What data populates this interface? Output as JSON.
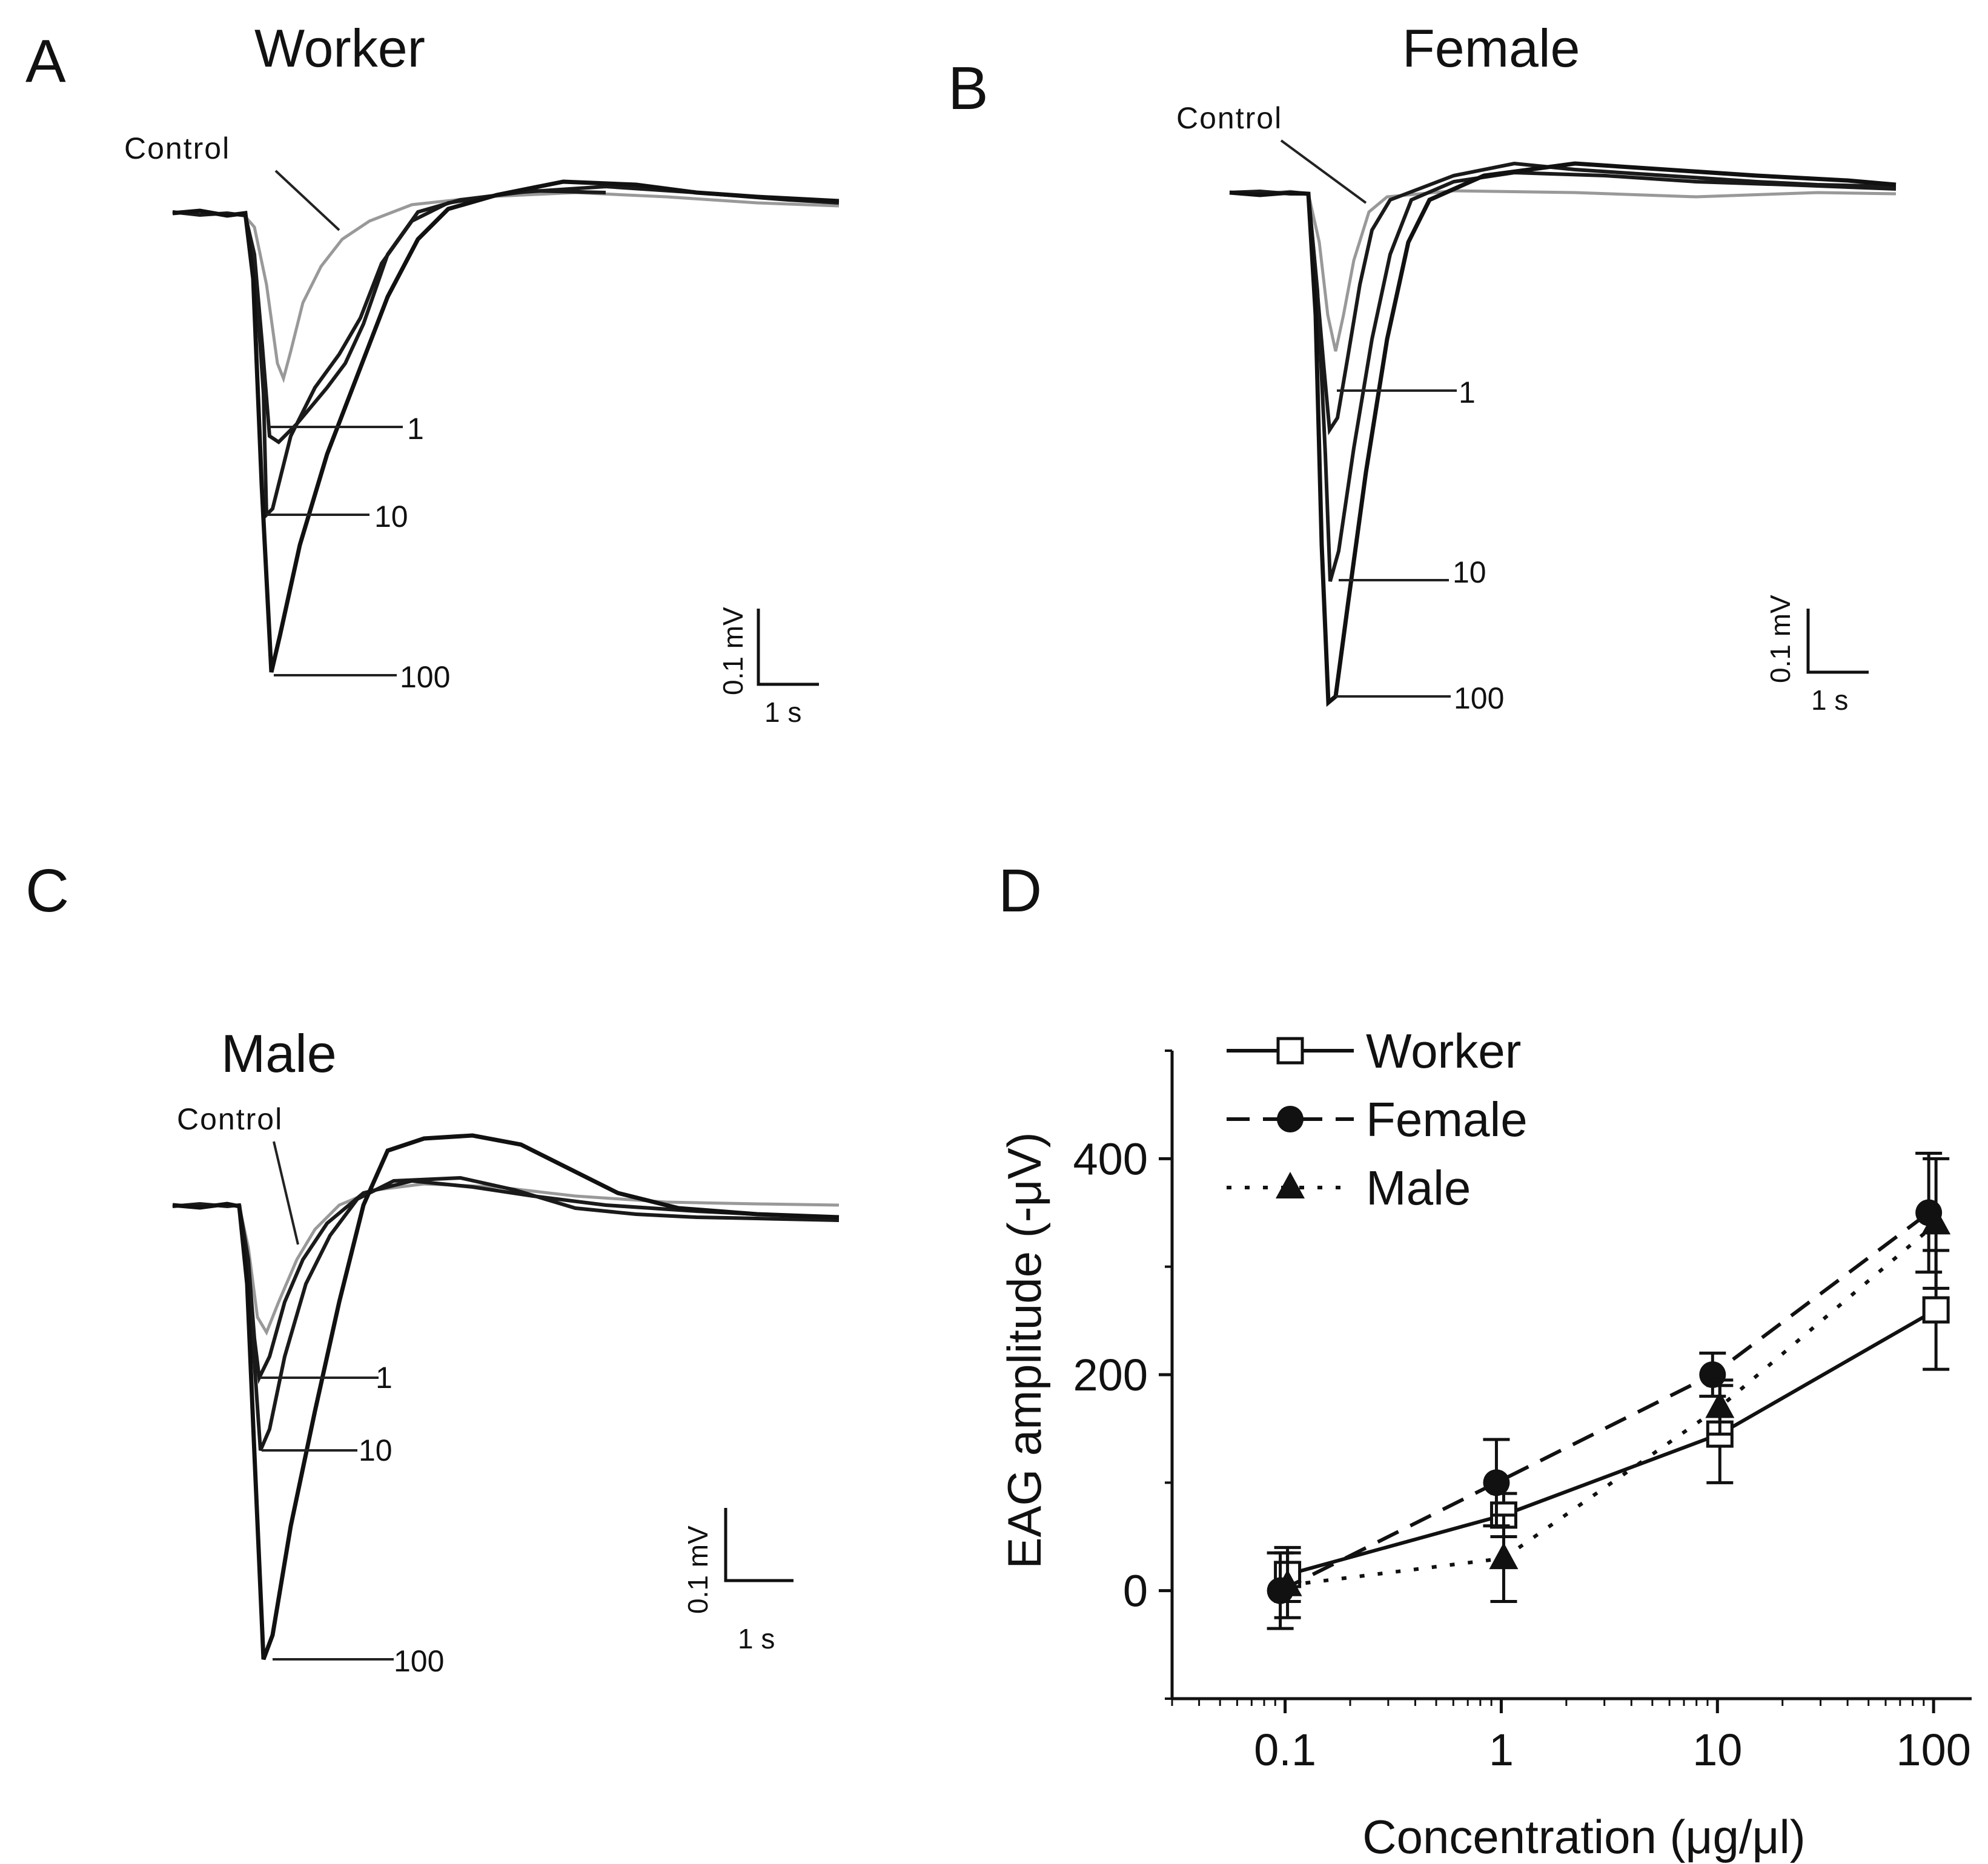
{
  "panels": {
    "A": {
      "label": "A",
      "title": "Worker",
      "control_label": "Control",
      "dose_labels": [
        "1",
        "10",
        "100"
      ],
      "scale_voltage": "0.1 mV",
      "scale_time": "1 s"
    },
    "B": {
      "label": "B",
      "title": "Female",
      "control_label": "Control",
      "dose_labels": [
        "1",
        "10",
        "100"
      ],
      "scale_voltage": "0.1 mV",
      "scale_time": "1 s"
    },
    "C": {
      "label": "C",
      "title": "Male",
      "control_label": "Control",
      "dose_labels": [
        "1",
        "10",
        "100"
      ],
      "scale_voltage": "0.1 mV",
      "scale_time": "1 s"
    },
    "D": {
      "label": "D"
    }
  },
  "chart_data": {
    "type": "line",
    "xscale": "log",
    "xlabel": "Concentration (μg/μl)",
    "ylabel": "EAG amplitude (-μV)",
    "x": [
      0.1,
      1,
      10,
      100
    ],
    "x_tick_labels": [
      "0.1",
      "1",
      "10",
      "100"
    ],
    "xlim": [
      0.03,
      150
    ],
    "ylim": [
      -100,
      500
    ],
    "y_ticks": [
      0,
      200,
      400
    ],
    "y_tick_labels": [
      "0",
      "200",
      "400"
    ],
    "legend_position": "top-left",
    "series": [
      {
        "name": "Worker",
        "marker": "open-square",
        "line": "solid",
        "values": [
          15,
          70,
          145,
          260
        ],
        "errors": [
          25,
          20,
          45,
          55
        ]
      },
      {
        "name": "Female",
        "marker": "filled-circle",
        "line": "dashed",
        "values": [
          0,
          100,
          200,
          350
        ],
        "errors": [
          35,
          40,
          20,
          55
        ]
      },
      {
        "name": "Male",
        "marker": "filled-triangle",
        "line": "dotted",
        "values": [
          5,
          30,
          170,
          340
        ],
        "errors": [
          30,
          40,
          25,
          60
        ]
      }
    ]
  }
}
